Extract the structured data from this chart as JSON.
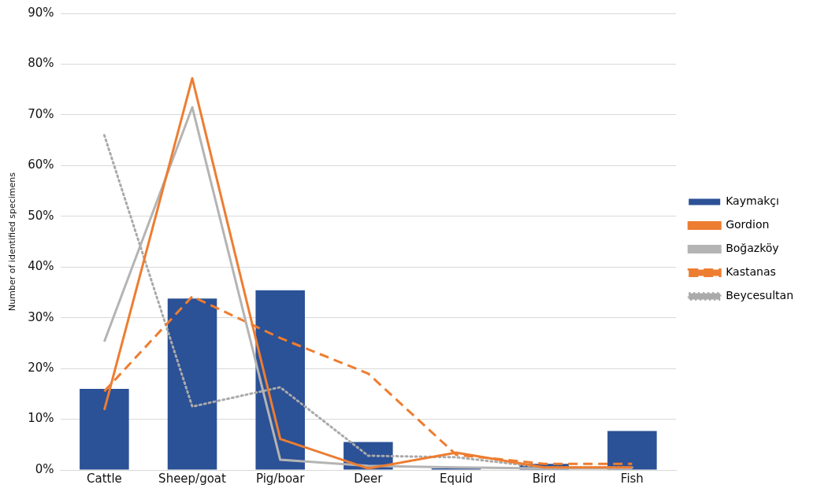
{
  "chart_data": {
    "type": "bar",
    "ylabel": "Number of identified specimens",
    "categories": [
      "Cattle",
      "Sheep/goat",
      "Pig/boar",
      "Deer",
      "Equid",
      "Bird",
      "Fish"
    ],
    "series": [
      {
        "name": "Kaymakçı",
        "color": "#2b5196",
        "values": [
          16,
          33.8,
          35.4,
          5.5,
          0.3,
          1.2,
          7.7
        ]
      },
      {
        "name": "Gordion",
        "type": "line",
        "color": "#ed7d31",
        "line_style": "solid",
        "values": [
          11.8,
          77.2,
          6.1,
          0.3,
          3.4,
          0.5,
          0.5
        ]
      },
      {
        "name": "Boğazköy",
        "type": "line",
        "color": "#b4b4b4",
        "line_style": "solid",
        "values": [
          25.3,
          71.5,
          2,
          0.8,
          0.5,
          0.3,
          0.3
        ]
      },
      {
        "name": "Kastanas",
        "type": "line",
        "color": "#ed7d31",
        "line_style": "dashed",
        "values": [
          15.5,
          34.2,
          26,
          19,
          3,
          1.2,
          1.2
        ]
      },
      {
        "name": "Beycesultan",
        "type": "line",
        "color": "#aaaaaa",
        "line_style": "dotted",
        "values": [
          66,
          12.5,
          16.3,
          2.8,
          2.5,
          0.5,
          0.5
        ]
      }
    ],
    "ylim": [
      0,
      90
    ],
    "yticks": [
      {
        "value": 0,
        "label": "0%"
      },
      {
        "value": 10,
        "label": "10%"
      },
      {
        "value": 20,
        "label": "20%"
      },
      {
        "value": 30,
        "label": "30%"
      },
      {
        "value": 40,
        "label": "40%"
      },
      {
        "value": 50,
        "label": "50%"
      },
      {
        "value": 60,
        "label": "60%"
      },
      {
        "value": 70,
        "label": "70%"
      },
      {
        "value": 80,
        "label": "80%"
      },
      {
        "value": 90,
        "label": "90%"
      }
    ],
    "grid": "y",
    "legend": "right",
    "marker": "none"
  }
}
